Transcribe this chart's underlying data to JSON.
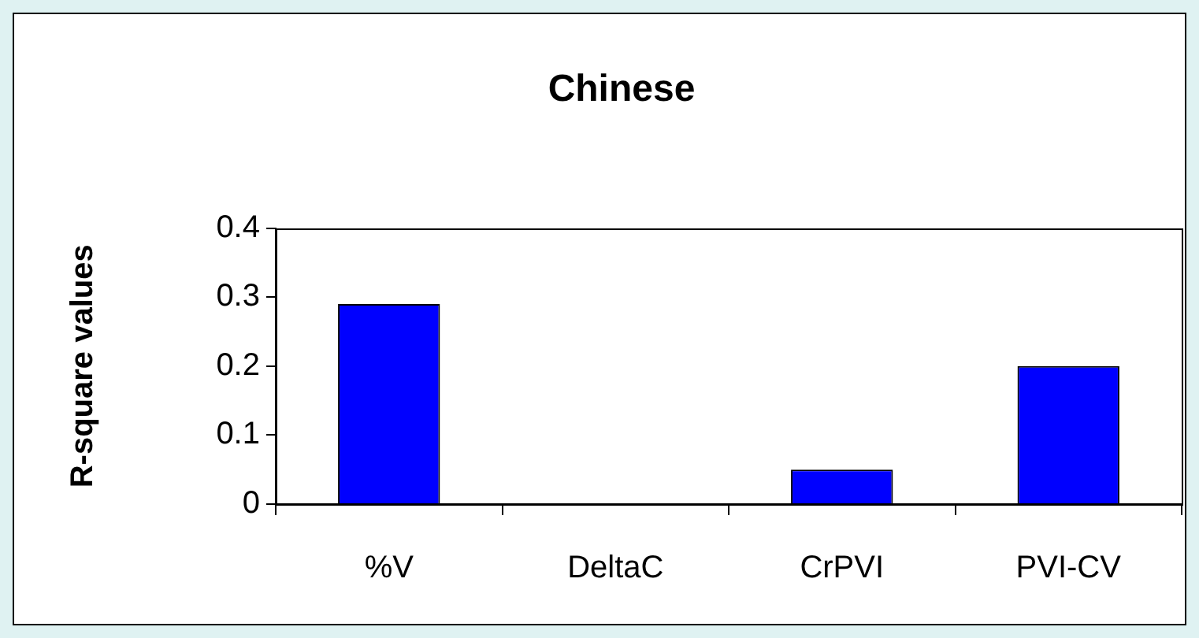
{
  "chart_data": {
    "type": "bar",
    "title": "Chinese",
    "ylabel": "R-square values",
    "categories": [
      "%V",
      "DeltaC",
      "CrPVI",
      "PVI-CV"
    ],
    "values": [
      0.29,
      0,
      0.05,
      0.2
    ],
    "color": "#0000ff",
    "ylim": [
      0,
      0.4
    ],
    "yticks": [
      0,
      0.1,
      0.2,
      0.3,
      0.4
    ],
    "grid": false,
    "legend": false
  }
}
